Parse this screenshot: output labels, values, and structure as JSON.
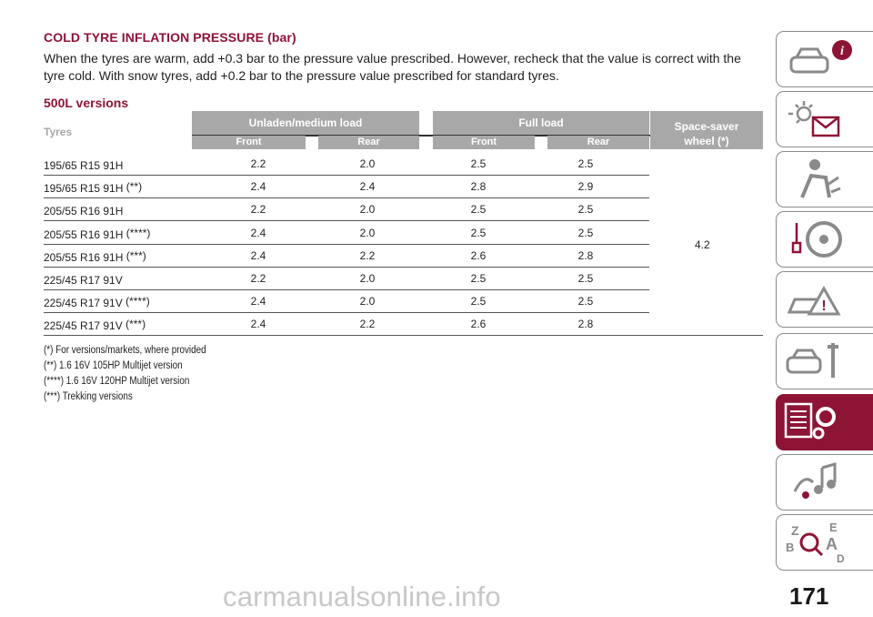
{
  "title": "COLD TYRE INFLATION PRESSURE (bar)",
  "intro": "When the tyres are warm, add +0.3 bar to the pressure value prescribed. However, recheck that the value is correct with the tyre cold. With snow tyres, add +0.2 bar to the pressure value prescribed for standard tyres.",
  "section_title": "500L versions",
  "table": {
    "col_tyres": "Tyres",
    "group_unladen": "Unladen/medium load",
    "group_full": "Full load",
    "col_spacesaver": "Space-saver wheel (*)",
    "sub_front": "Front",
    "sub_rear": "Rear",
    "rows": [
      {
        "tyre": "195/65 R15 91H",
        "note": "",
        "uf": "2.2",
        "ur": "2.0",
        "ff": "2.5",
        "fr": "2.5"
      },
      {
        "tyre": "195/65 R15 91H ",
        "note": "(**)",
        "uf": "2.4",
        "ur": "2.4",
        "ff": "2.8",
        "fr": "2.9"
      },
      {
        "tyre": "205/55 R16 91H",
        "note": "",
        "uf": "2.2",
        "ur": "2.0",
        "ff": "2.5",
        "fr": "2.5"
      },
      {
        "tyre": "205/55 R16 91H ",
        "note": "(****)",
        "uf": "2.4",
        "ur": "2.0",
        "ff": "2.5",
        "fr": "2.5"
      },
      {
        "tyre": "205/55 R16 91H ",
        "note": "(***)",
        "uf": "2.4",
        "ur": "2.2",
        "ff": "2.6",
        "fr": "2.8"
      },
      {
        "tyre": "225/45 R17 91V",
        "note": "",
        "uf": "2.2",
        "ur": "2.0",
        "ff": "2.5",
        "fr": "2.5"
      },
      {
        "tyre": "225/45 R17 91V ",
        "note": "(****)",
        "uf": "2.4",
        "ur": "2.0",
        "ff": "2.5",
        "fr": "2.5"
      },
      {
        "tyre": "225/45 R17 91V ",
        "note": "(***)",
        "uf": "2.4",
        "ur": "2.2",
        "ff": "2.6",
        "fr": "2.8"
      }
    ],
    "spacesaver_value": "4.2"
  },
  "footnotes": [
    "(*) For versions/markets, where provided",
    "(**) 1.6 16V 105HP Multijet version",
    "(****) 1.6 16V 120HP Multijet version",
    "(***) Trekking versions"
  ],
  "nav_tabs": [
    {
      "name": "car-info-icon"
    },
    {
      "name": "warning-lights-icon"
    },
    {
      "name": "safety-airbag-icon"
    },
    {
      "name": "starting-driving-icon"
    },
    {
      "name": "emergency-icon"
    },
    {
      "name": "maintenance-icon"
    },
    {
      "name": "technical-specs-icon",
      "active": true
    },
    {
      "name": "multimedia-icon"
    },
    {
      "name": "index-icon"
    }
  ],
  "page_number": "171",
  "watermark": "carmanualsonline.info",
  "colors": {
    "accent": "#8e1436",
    "header_gray": "#a8a8a8"
  }
}
